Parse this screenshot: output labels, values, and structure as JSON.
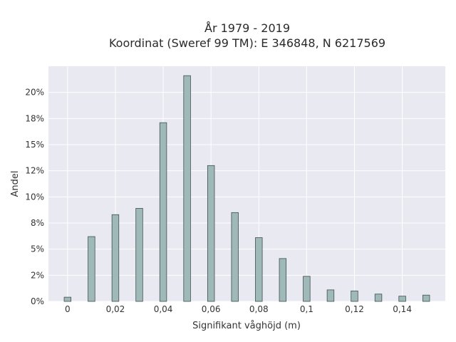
{
  "chart_data": {
    "type": "bar",
    "title": "År 1979 - 2019",
    "subtitle": "Koordinat (Sweref 99 TM): E 346848, N 6217569",
    "xlabel": "Signifikant våghöjd (m)",
    "ylabel": "Andel",
    "x": [
      0,
      0.01,
      0.02,
      0.03,
      0.04,
      0.05,
      0.06,
      0.07,
      0.08,
      0.09,
      0.1,
      0.11,
      0.12,
      0.13,
      0.14,
      0.15
    ],
    "values": [
      0.4,
      6.2,
      8.3,
      8.9,
      17.1,
      21.6,
      13.0,
      8.5,
      6.1,
      4.1,
      2.4,
      1.1,
      1.0,
      0.7,
      0.5,
      0.6
    ],
    "xlim": [
      -0.008,
      0.158
    ],
    "ylim": [
      0,
      22.5
    ],
    "xticks": [
      0,
      0.02,
      0.04,
      0.06,
      0.08,
      0.1,
      0.12,
      0.14
    ],
    "xtick_labels": [
      "0",
      "0,02",
      "0,04",
      "0,06",
      "0,08",
      "0,1",
      "0,12",
      "0,14"
    ],
    "yticks": [
      0,
      2.5,
      5,
      7.5,
      10,
      12.5,
      15,
      17.5,
      20
    ],
    "ytick_labels": [
      "0%",
      "2%",
      "5%",
      "8%",
      "10%",
      "12%",
      "15%",
      "18%",
      "20%"
    ],
    "grid": true,
    "colors": {
      "bar_fill": "#9fb9b9",
      "bar_stroke": "#3f4f4f",
      "plot_bg": "#e9e9f1",
      "grid": "#ffffff"
    }
  }
}
